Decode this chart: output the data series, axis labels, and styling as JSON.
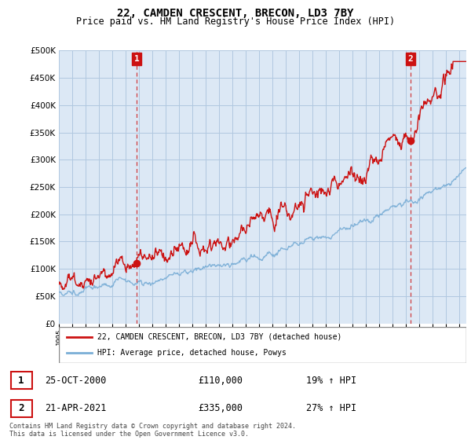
{
  "title": "22, CAMDEN CRESCENT, BRECON, LD3 7BY",
  "subtitle": "Price paid vs. HM Land Registry's House Price Index (HPI)",
  "ylim": [
    0,
    500000
  ],
  "yticks": [
    0,
    50000,
    100000,
    150000,
    200000,
    250000,
    300000,
    350000,
    400000,
    450000,
    500000
  ],
  "sale1_year": 2000.82,
  "sale1_price": 110000,
  "sale2_year": 2021.31,
  "sale2_price": 335000,
  "hpi_color": "#7aaed6",
  "price_color": "#cc1111",
  "annotation_box_color": "#cc1111",
  "background_color": "#dce8f5",
  "grid_color": "#b0c8e0",
  "legend_label_price": "22, CAMDEN CRESCENT, BRECON, LD3 7BY (detached house)",
  "legend_label_hpi": "HPI: Average price, detached house, Powys",
  "table_row1": [
    "1",
    "25-OCT-2000",
    "£110,000",
    "19% ↑ HPI"
  ],
  "table_row2": [
    "2",
    "21-APR-2021",
    "£335,000",
    "27% ↑ HPI"
  ],
  "footer": "Contains HM Land Registry data © Crown copyright and database right 2024.\nThis data is licensed under the Open Government Licence v3.0.",
  "xmin": 1995,
  "xmax": 2025.5
}
